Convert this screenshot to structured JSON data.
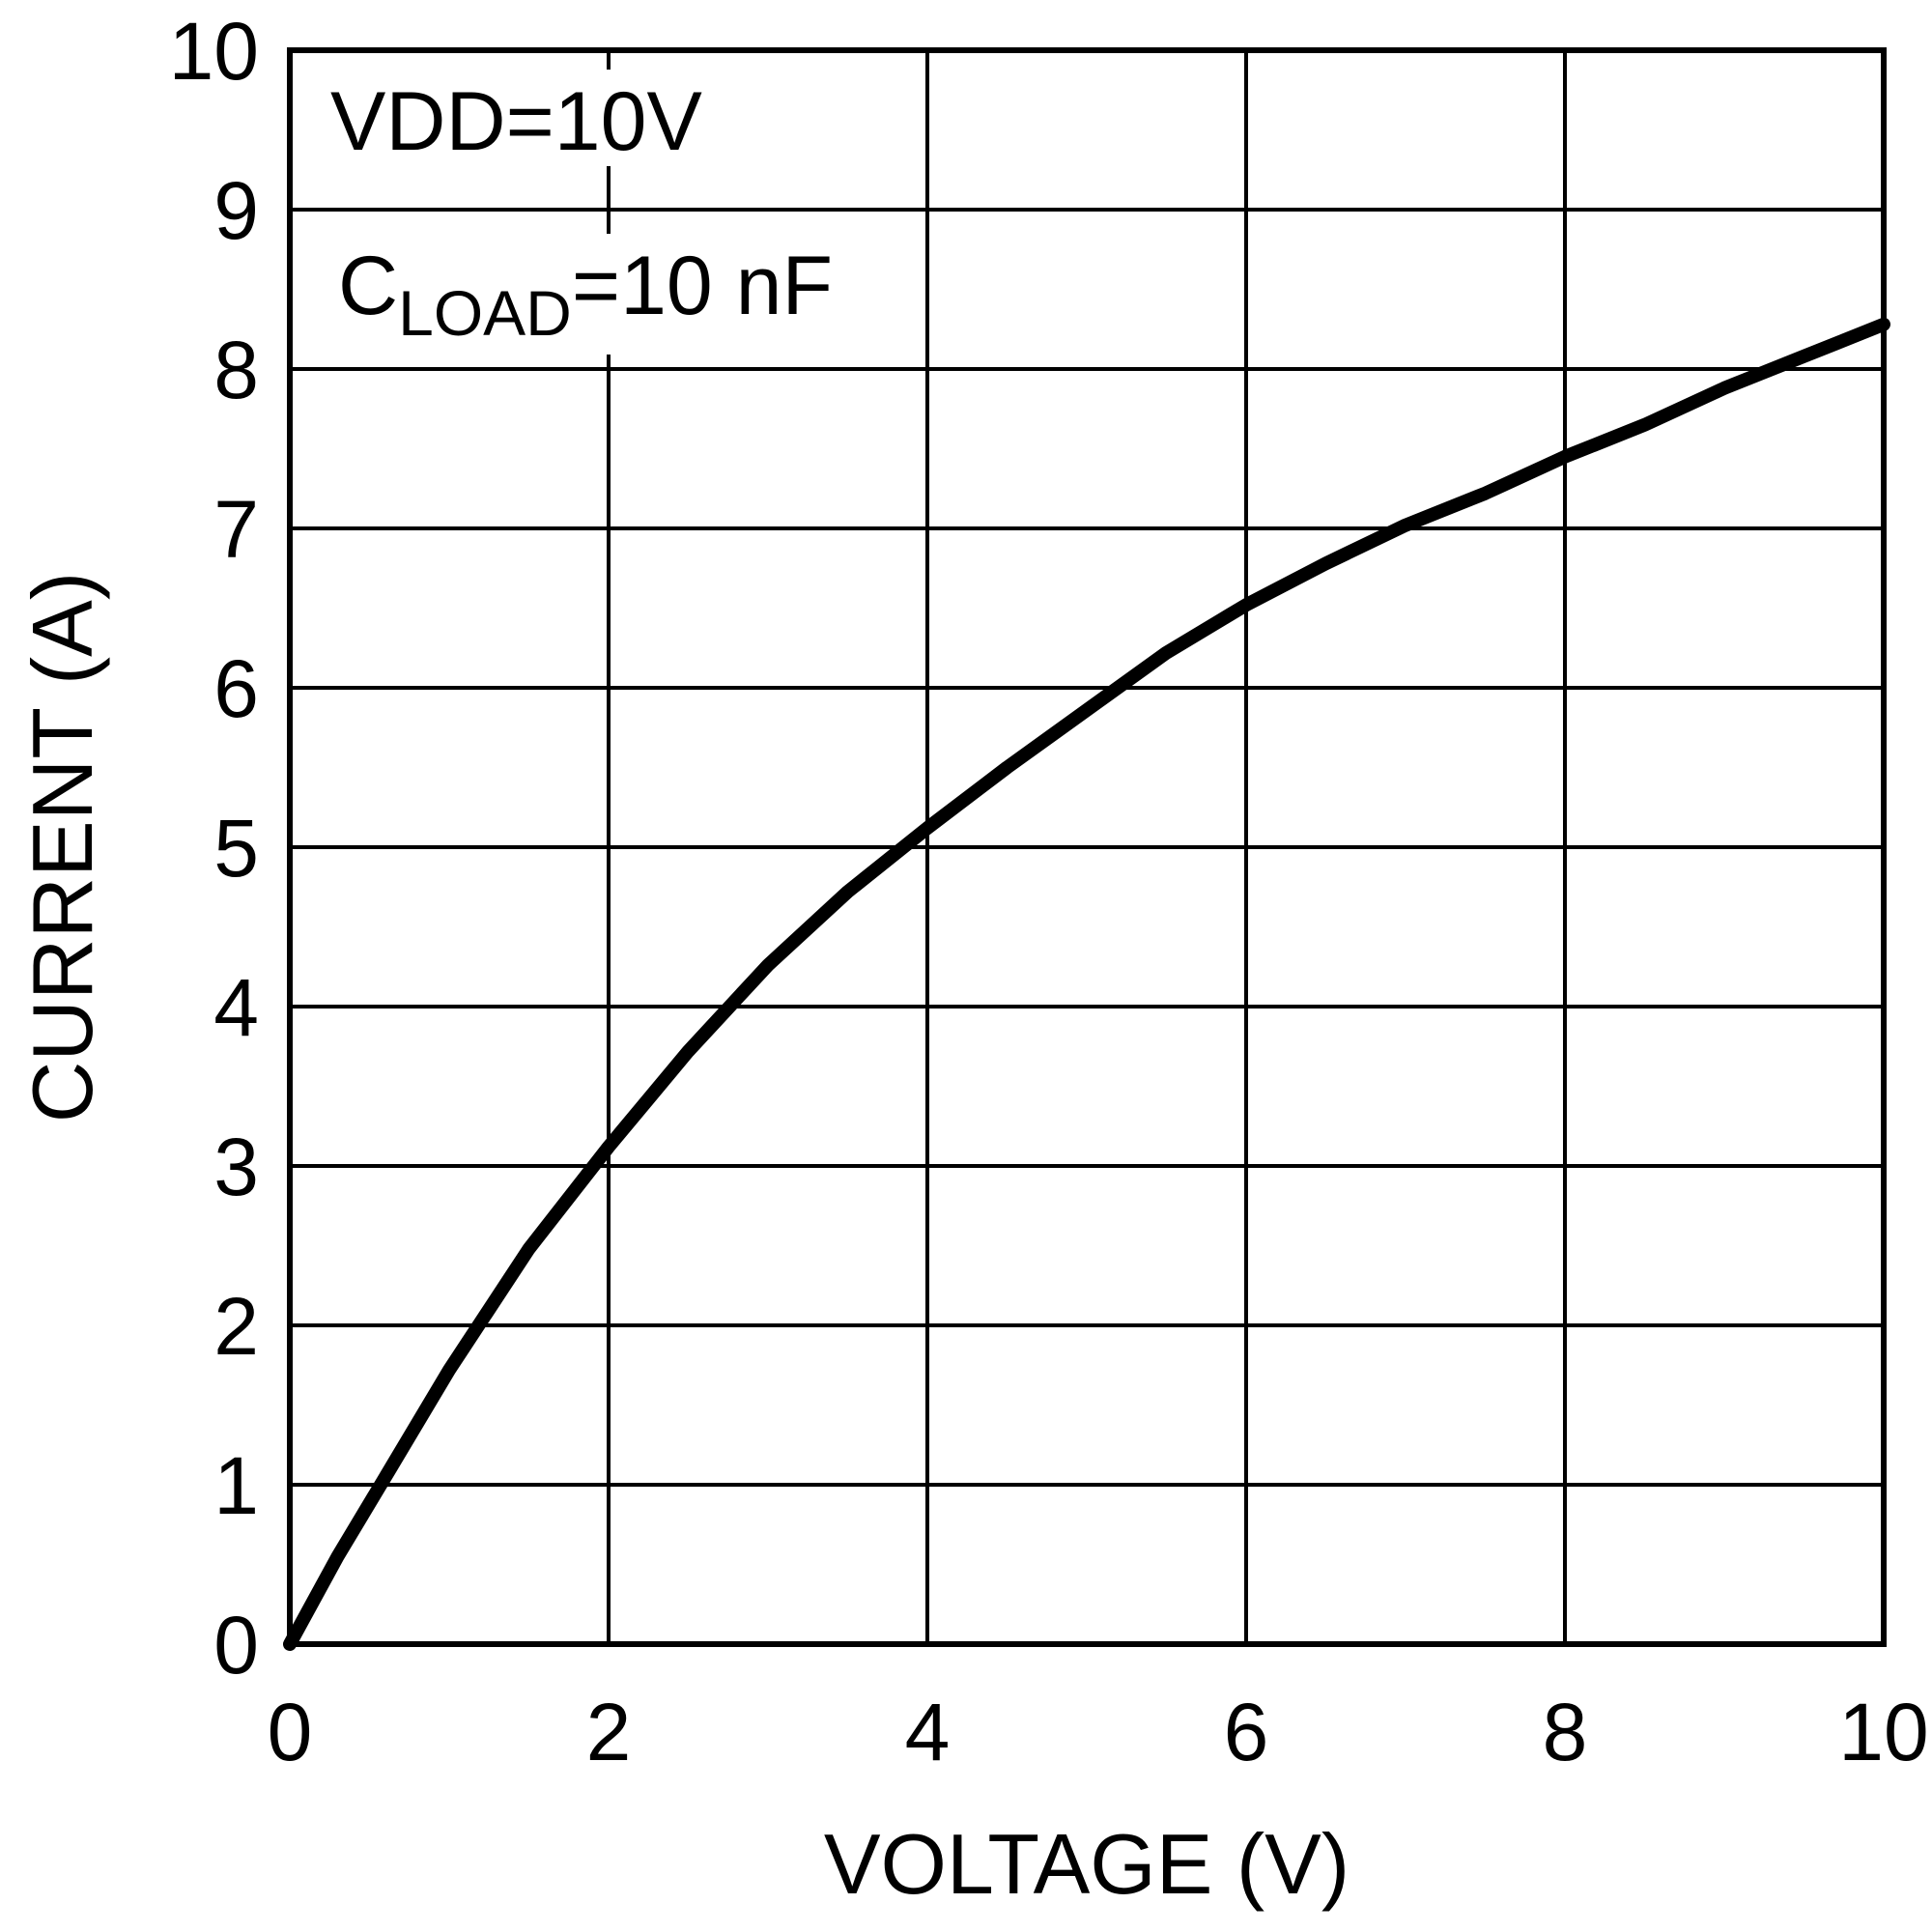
{
  "chart_data": {
    "type": "line",
    "xlabel": "VOLTAGE (V)",
    "ylabel": "CURRENT (A)",
    "xlim": [
      0,
      10
    ],
    "ylim": [
      0,
      10
    ],
    "x_ticks": [
      "0",
      "2",
      "4",
      "6",
      "8",
      "10"
    ],
    "y_ticks": [
      "0",
      "1",
      "2",
      "3",
      "4",
      "5",
      "6",
      "7",
      "8",
      "9",
      "10"
    ],
    "grid": true,
    "line_color": "#000000",
    "annotations": {
      "vdd": "VDD=10V",
      "cload_main": "C",
      "cload_sub": "LOAD",
      "cload_value": "=10 nF"
    },
    "series": [
      {
        "x": [
          0,
          0.3,
          0.6,
          1.0,
          1.5,
          2.0,
          2.5,
          3.0,
          3.5,
          4.0,
          4.5,
          5.0,
          5.5,
          6.0,
          6.5,
          7.0,
          7.5,
          8.0,
          8.5,
          9.0,
          9.5,
          10.0
        ],
        "y": [
          0,
          0.55,
          1.05,
          1.72,
          2.48,
          3.12,
          3.72,
          4.26,
          4.72,
          5.12,
          5.5,
          5.86,
          6.22,
          6.52,
          6.78,
          7.02,
          7.22,
          7.45,
          7.65,
          7.88,
          8.08,
          8.28
        ]
      }
    ]
  }
}
